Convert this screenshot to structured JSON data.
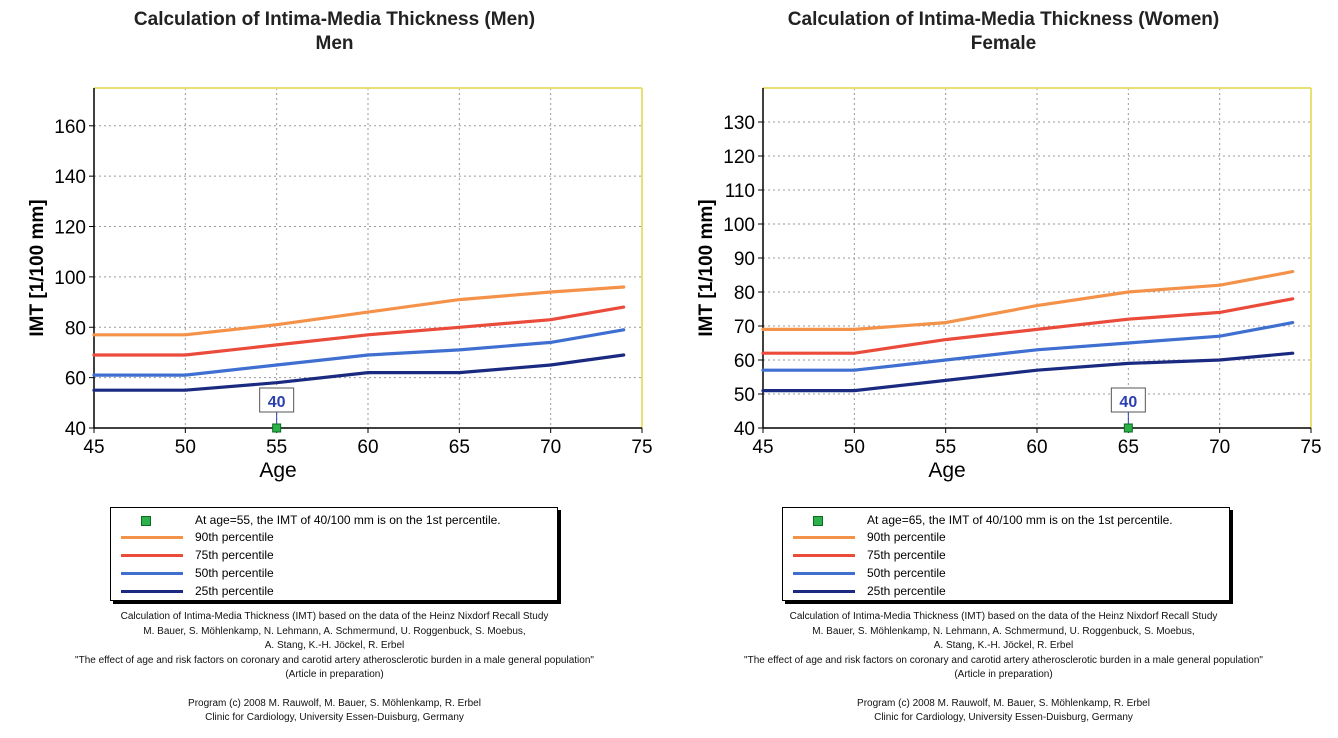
{
  "charts": [
    {
      "title": "Calculation of Intima-Media Thickness (Men)",
      "subtitle": "Men",
      "legend": {
        "marker_text": "At age=55, the IMT of 40/100 mm is on  the 1st percentile.",
        "items": [
          "90th percentile",
          "75th percentile",
          "50th percentile",
          "25th percentile"
        ]
      },
      "credits": [
        "Calculation of Intima-Media Thickness (IMT) based on the data of the Heinz Nixdorf Recall Study",
        "M. Bauer, S. Möhlenkamp, N. Lehmann, A. Schmermund, U. Roggenbuck, S. Moebus,",
        "A. Stang, K.-H. Jöckel, R. Erbel",
        "\"The effect of age and risk factors on coronary and carotid artery atherosclerotic burden in a male general population\"",
        "(Article in preparation)",
        "",
        "Program (c) 2008   M. Rauwolf, M. Bauer, S. Möhlenkamp, R. Erbel",
        "Clinic for Cardiology, University Essen-Duisburg, Germany"
      ]
    },
    {
      "title": "Calculation of Intima-Media Thickness (Women)",
      "subtitle": "Female",
      "legend": {
        "marker_text": "At age=65, the IMT of 40/100 mm is on  the 1st percentile.",
        "items": [
          "90th percentile",
          "75th percentile",
          "50th percentile",
          "25th percentile"
        ]
      },
      "credits": [
        "Calculation of Intima-Media Thickness (IMT) based on the data of the Heinz Nixdorf Recall Study",
        "M. Bauer, S. Möhlenkamp, N. Lehmann, A. Schmermund, U. Roggenbuck, S. Moebus,",
        "A. Stang, K.-H. Jöckel, R. Erbel",
        "\"The effect of age and risk factors on coronary and carotid artery atherosclerotic burden in a male general population\"",
        "(Article in preparation)",
        "",
        "Program (c) 2008   M. Rauwolf, M. Bauer, S. Möhlenkamp, R. Erbel",
        "Clinic for Cardiology, University Essen-Duisburg, Germany"
      ]
    }
  ],
  "colors": {
    "p90": "#f4924a",
    "p75": "#ea4b3a",
    "p50": "#3f6fd0",
    "p25": "#1a2a80",
    "marker": "#2bb04a",
    "callout": "#2c3fb0",
    "plot_border_top": "#e8e070"
  },
  "chart_data": [
    {
      "type": "line",
      "title": "Calculation of Intima-Media Thickness (Men)",
      "subtitle": "Men",
      "xlabel": "Age",
      "ylabel": "IMT [1/100 mm]",
      "xlim": [
        45,
        75
      ],
      "ylim": [
        40,
        175
      ],
      "xticks": [
        45,
        50,
        55,
        60,
        65,
        70,
        75
      ],
      "yticks": [
        40,
        60,
        80,
        100,
        120,
        140,
        160
      ],
      "grid": true,
      "legend_position": "bottom",
      "series": [
        {
          "name": "90th percentile",
          "x": [
            45,
            50,
            55,
            60,
            65,
            70,
            74
          ],
          "values": [
            77,
            77,
            81,
            86,
            91,
            94,
            96
          ]
        },
        {
          "name": "75th percentile",
          "x": [
            45,
            50,
            55,
            60,
            65,
            70,
            74
          ],
          "values": [
            69,
            69,
            73,
            77,
            80,
            83,
            88
          ]
        },
        {
          "name": "50th percentile",
          "x": [
            45,
            50,
            55,
            60,
            65,
            70,
            74
          ],
          "values": [
            61,
            61,
            65,
            69,
            71,
            74,
            79
          ]
        },
        {
          "name": "25th percentile",
          "x": [
            45,
            50,
            55,
            60,
            65,
            70,
            74
          ],
          "values": [
            55,
            55,
            58,
            62,
            62,
            65,
            69
          ]
        }
      ],
      "marker": {
        "x": 55,
        "y": 40,
        "label": "40"
      }
    },
    {
      "type": "line",
      "title": "Calculation of Intima-Media Thickness (Women)",
      "subtitle": "Female",
      "xlabel": "Age",
      "ylabel": "IMT [1/100 mm]",
      "xlim": [
        45,
        75
      ],
      "ylim": [
        40,
        140
      ],
      "xticks": [
        45,
        50,
        55,
        60,
        65,
        70,
        75
      ],
      "yticks": [
        40,
        50,
        60,
        70,
        80,
        90,
        100,
        110,
        120,
        130
      ],
      "grid": true,
      "legend_position": "bottom",
      "series": [
        {
          "name": "90th percentile",
          "x": [
            45,
            50,
            55,
            60,
            65,
            70,
            74
          ],
          "values": [
            69,
            69,
            71,
            76,
            80,
            82,
            86
          ]
        },
        {
          "name": "75th percentile",
          "x": [
            45,
            50,
            55,
            60,
            65,
            70,
            74
          ],
          "values": [
            62,
            62,
            66,
            69,
            72,
            74,
            78
          ]
        },
        {
          "name": "50th percentile",
          "x": [
            45,
            50,
            55,
            60,
            65,
            70,
            74
          ],
          "values": [
            57,
            57,
            60,
            63,
            65,
            67,
            71
          ]
        },
        {
          "name": "25th percentile",
          "x": [
            45,
            50,
            55,
            60,
            65,
            70,
            74
          ],
          "values": [
            51,
            51,
            54,
            57,
            59,
            60,
            62
          ]
        }
      ],
      "marker": {
        "x": 65,
        "y": 40,
        "label": "40"
      }
    }
  ]
}
